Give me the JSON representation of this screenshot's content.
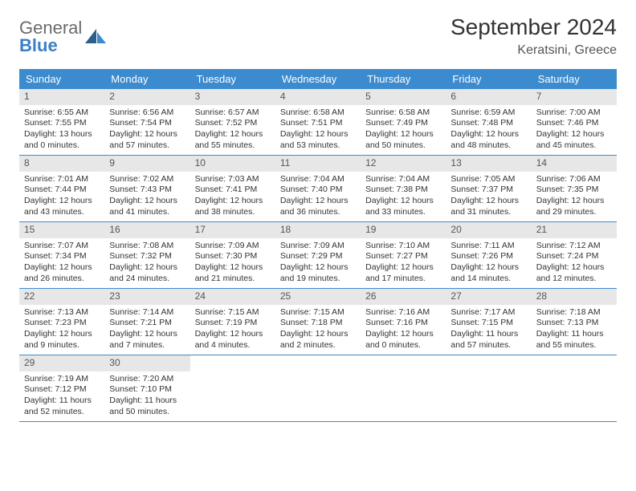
{
  "logo": {
    "general": "General",
    "blue": "Blue"
  },
  "title": "September 2024",
  "location": "Keratsini, Greece",
  "colors": {
    "header_bg": "#3d8bcf",
    "header_text": "#ffffff",
    "daynum_bg": "#e7e7e7",
    "border": "#3d8bcf",
    "logo_gray": "#6b6b6b",
    "logo_blue": "#3b7fc4"
  },
  "weekdays": [
    "Sunday",
    "Monday",
    "Tuesday",
    "Wednesday",
    "Thursday",
    "Friday",
    "Saturday"
  ],
  "weeks": [
    [
      {
        "n": "1",
        "sunrise": "Sunrise: 6:55 AM",
        "sunset": "Sunset: 7:55 PM",
        "daylight1": "Daylight: 13 hours",
        "daylight2": "and 0 minutes."
      },
      {
        "n": "2",
        "sunrise": "Sunrise: 6:56 AM",
        "sunset": "Sunset: 7:54 PM",
        "daylight1": "Daylight: 12 hours",
        "daylight2": "and 57 minutes."
      },
      {
        "n": "3",
        "sunrise": "Sunrise: 6:57 AM",
        "sunset": "Sunset: 7:52 PM",
        "daylight1": "Daylight: 12 hours",
        "daylight2": "and 55 minutes."
      },
      {
        "n": "4",
        "sunrise": "Sunrise: 6:58 AM",
        "sunset": "Sunset: 7:51 PM",
        "daylight1": "Daylight: 12 hours",
        "daylight2": "and 53 minutes."
      },
      {
        "n": "5",
        "sunrise": "Sunrise: 6:58 AM",
        "sunset": "Sunset: 7:49 PM",
        "daylight1": "Daylight: 12 hours",
        "daylight2": "and 50 minutes."
      },
      {
        "n": "6",
        "sunrise": "Sunrise: 6:59 AM",
        "sunset": "Sunset: 7:48 PM",
        "daylight1": "Daylight: 12 hours",
        "daylight2": "and 48 minutes."
      },
      {
        "n": "7",
        "sunrise": "Sunrise: 7:00 AM",
        "sunset": "Sunset: 7:46 PM",
        "daylight1": "Daylight: 12 hours",
        "daylight2": "and 45 minutes."
      }
    ],
    [
      {
        "n": "8",
        "sunrise": "Sunrise: 7:01 AM",
        "sunset": "Sunset: 7:44 PM",
        "daylight1": "Daylight: 12 hours",
        "daylight2": "and 43 minutes."
      },
      {
        "n": "9",
        "sunrise": "Sunrise: 7:02 AM",
        "sunset": "Sunset: 7:43 PM",
        "daylight1": "Daylight: 12 hours",
        "daylight2": "and 41 minutes."
      },
      {
        "n": "10",
        "sunrise": "Sunrise: 7:03 AM",
        "sunset": "Sunset: 7:41 PM",
        "daylight1": "Daylight: 12 hours",
        "daylight2": "and 38 minutes."
      },
      {
        "n": "11",
        "sunrise": "Sunrise: 7:04 AM",
        "sunset": "Sunset: 7:40 PM",
        "daylight1": "Daylight: 12 hours",
        "daylight2": "and 36 minutes."
      },
      {
        "n": "12",
        "sunrise": "Sunrise: 7:04 AM",
        "sunset": "Sunset: 7:38 PM",
        "daylight1": "Daylight: 12 hours",
        "daylight2": "and 33 minutes."
      },
      {
        "n": "13",
        "sunrise": "Sunrise: 7:05 AM",
        "sunset": "Sunset: 7:37 PM",
        "daylight1": "Daylight: 12 hours",
        "daylight2": "and 31 minutes."
      },
      {
        "n": "14",
        "sunrise": "Sunrise: 7:06 AM",
        "sunset": "Sunset: 7:35 PM",
        "daylight1": "Daylight: 12 hours",
        "daylight2": "and 29 minutes."
      }
    ],
    [
      {
        "n": "15",
        "sunrise": "Sunrise: 7:07 AM",
        "sunset": "Sunset: 7:34 PM",
        "daylight1": "Daylight: 12 hours",
        "daylight2": "and 26 minutes."
      },
      {
        "n": "16",
        "sunrise": "Sunrise: 7:08 AM",
        "sunset": "Sunset: 7:32 PM",
        "daylight1": "Daylight: 12 hours",
        "daylight2": "and 24 minutes."
      },
      {
        "n": "17",
        "sunrise": "Sunrise: 7:09 AM",
        "sunset": "Sunset: 7:30 PM",
        "daylight1": "Daylight: 12 hours",
        "daylight2": "and 21 minutes."
      },
      {
        "n": "18",
        "sunrise": "Sunrise: 7:09 AM",
        "sunset": "Sunset: 7:29 PM",
        "daylight1": "Daylight: 12 hours",
        "daylight2": "and 19 minutes."
      },
      {
        "n": "19",
        "sunrise": "Sunrise: 7:10 AM",
        "sunset": "Sunset: 7:27 PM",
        "daylight1": "Daylight: 12 hours",
        "daylight2": "and 17 minutes."
      },
      {
        "n": "20",
        "sunrise": "Sunrise: 7:11 AM",
        "sunset": "Sunset: 7:26 PM",
        "daylight1": "Daylight: 12 hours",
        "daylight2": "and 14 minutes."
      },
      {
        "n": "21",
        "sunrise": "Sunrise: 7:12 AM",
        "sunset": "Sunset: 7:24 PM",
        "daylight1": "Daylight: 12 hours",
        "daylight2": "and 12 minutes."
      }
    ],
    [
      {
        "n": "22",
        "sunrise": "Sunrise: 7:13 AM",
        "sunset": "Sunset: 7:23 PM",
        "daylight1": "Daylight: 12 hours",
        "daylight2": "and 9 minutes."
      },
      {
        "n": "23",
        "sunrise": "Sunrise: 7:14 AM",
        "sunset": "Sunset: 7:21 PM",
        "daylight1": "Daylight: 12 hours",
        "daylight2": "and 7 minutes."
      },
      {
        "n": "24",
        "sunrise": "Sunrise: 7:15 AM",
        "sunset": "Sunset: 7:19 PM",
        "daylight1": "Daylight: 12 hours",
        "daylight2": "and 4 minutes."
      },
      {
        "n": "25",
        "sunrise": "Sunrise: 7:15 AM",
        "sunset": "Sunset: 7:18 PM",
        "daylight1": "Daylight: 12 hours",
        "daylight2": "and 2 minutes."
      },
      {
        "n": "26",
        "sunrise": "Sunrise: 7:16 AM",
        "sunset": "Sunset: 7:16 PM",
        "daylight1": "Daylight: 12 hours",
        "daylight2": "and 0 minutes."
      },
      {
        "n": "27",
        "sunrise": "Sunrise: 7:17 AM",
        "sunset": "Sunset: 7:15 PM",
        "daylight1": "Daylight: 11 hours",
        "daylight2": "and 57 minutes."
      },
      {
        "n": "28",
        "sunrise": "Sunrise: 7:18 AM",
        "sunset": "Sunset: 7:13 PM",
        "daylight1": "Daylight: 11 hours",
        "daylight2": "and 55 minutes."
      }
    ],
    [
      {
        "n": "29",
        "sunrise": "Sunrise: 7:19 AM",
        "sunset": "Sunset: 7:12 PM",
        "daylight1": "Daylight: 11 hours",
        "daylight2": "and 52 minutes."
      },
      {
        "n": "30",
        "sunrise": "Sunrise: 7:20 AM",
        "sunset": "Sunset: 7:10 PM",
        "daylight1": "Daylight: 11 hours",
        "daylight2": "and 50 minutes."
      },
      null,
      null,
      null,
      null,
      null
    ]
  ]
}
